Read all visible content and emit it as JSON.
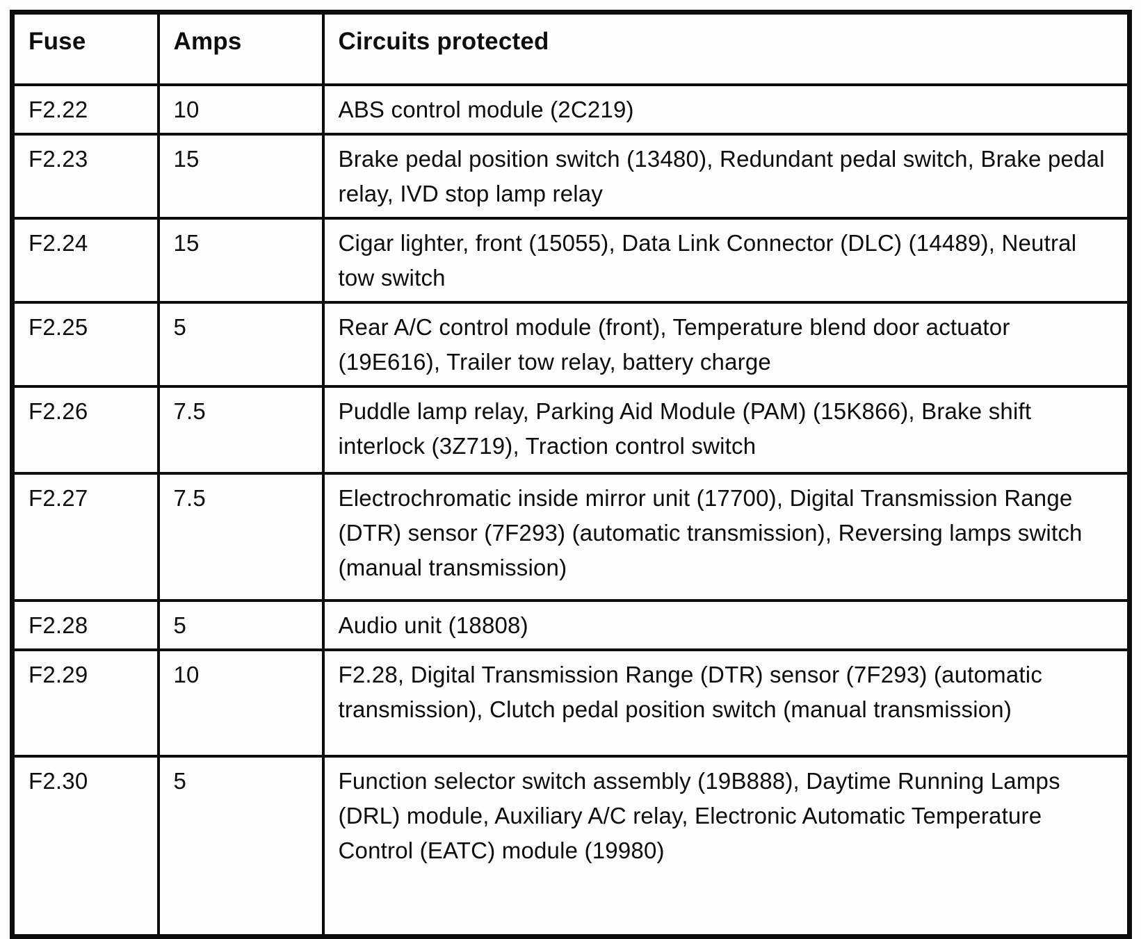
{
  "table": {
    "columns": [
      "Fuse",
      "Amps",
      "Circuits protected"
    ],
    "rows": [
      {
        "fuse": "F2.22",
        "amps": "10",
        "circuits": "ABS control module (2C219)"
      },
      {
        "fuse": "F2.23",
        "amps": "15",
        "circuits": "Brake pedal position switch (13480), Redundant pedal switch, Brake pedal relay, IVD stop lamp relay"
      },
      {
        "fuse": "F2.24",
        "amps": "15",
        "circuits": "Cigar lighter, front (15055), Data Link Connector (DLC) (14489), Neutral tow switch"
      },
      {
        "fuse": "F2.25",
        "amps": "5",
        "circuits": "Rear A/C control module (front), Temperature blend door actuator (19E616), Trailer tow relay, battery charge"
      },
      {
        "fuse": "F2.26",
        "amps": "7.5",
        "circuits": "Puddle lamp relay, Parking Aid Module (PAM) (15K866), Brake shift interlock (3Z719), Traction control switch"
      },
      {
        "fuse": "F2.27",
        "amps": "7.5",
        "circuits": "Electrochromatic inside mirror unit (17700), Digital Transmission Range (DTR) sensor (7F293) (automatic transmission), Reversing lamps switch (manual transmission)"
      },
      {
        "fuse": "F2.28",
        "amps": "5",
        "circuits": "Audio unit (18808)"
      },
      {
        "fuse": "F2.29",
        "amps": "10",
        "circuits": "F2.28, Digital Transmission Range (DTR) sensor (7F293) (automatic transmission), Clutch pedal position switch (manual transmission)"
      },
      {
        "fuse": "F2.30",
        "amps": "5",
        "circuits": "Function selector switch assembly (19B888), Daytime Running Lamps (DRL) module, Auxiliary A/C relay, Electronic Automatic Temperature Control (EATC) module (19980)"
      }
    ]
  },
  "colors": {
    "text": "#0d0d0d",
    "border": "#0d0d0d",
    "background": "#fdfdfd"
  }
}
